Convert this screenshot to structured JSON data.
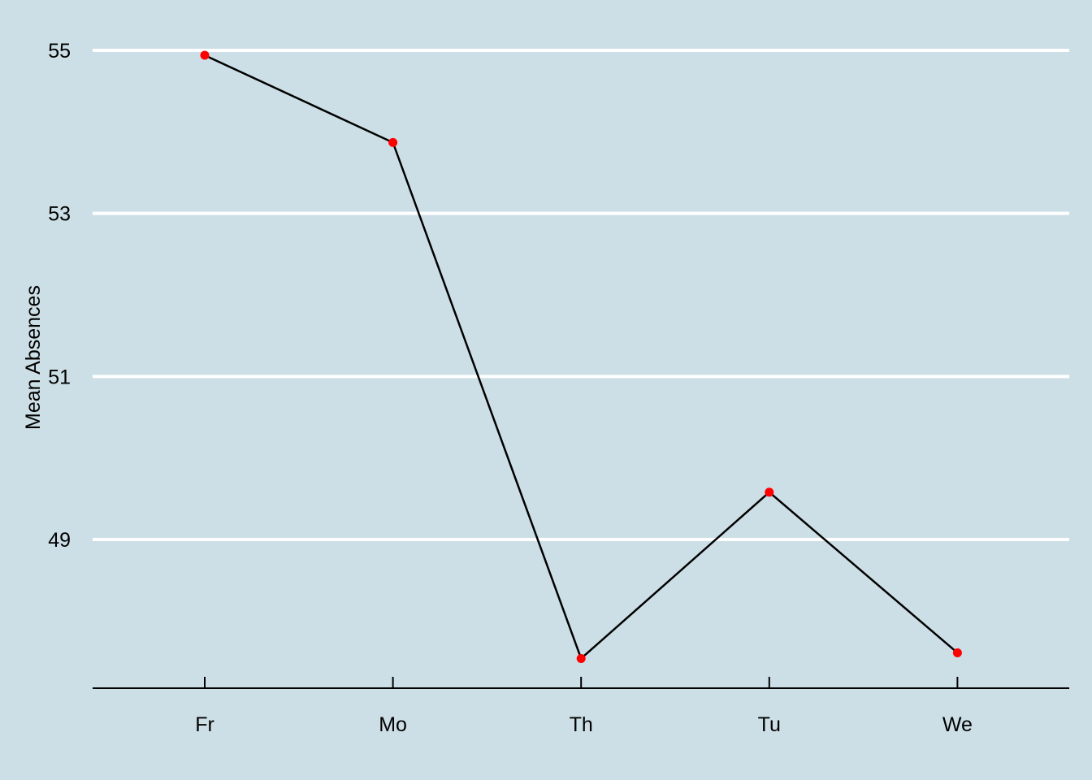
{
  "chart_data": {
    "type": "line",
    "title": "",
    "xlabel": "",
    "ylabel": "Mean Absences",
    "categories": [
      "Fr",
      "Mo",
      "Th",
      "Tu",
      "We"
    ],
    "series": [
      {
        "values": [
          54.94,
          53.87,
          47.54,
          49.58,
          47.61
        ]
      }
    ],
    "yticks": [
      49,
      51,
      53,
      55
    ],
    "ytick_labels": [
      "49",
      "51",
      "53",
      "55"
    ],
    "ylim": [
      47.2,
      55.5
    ],
    "grid": "horizontal",
    "legend": "none",
    "colors": {
      "background": "#cddfe6",
      "grid": "#ffffff",
      "line": "#000000",
      "points": "#ff0000",
      "axis": "#000000"
    }
  }
}
